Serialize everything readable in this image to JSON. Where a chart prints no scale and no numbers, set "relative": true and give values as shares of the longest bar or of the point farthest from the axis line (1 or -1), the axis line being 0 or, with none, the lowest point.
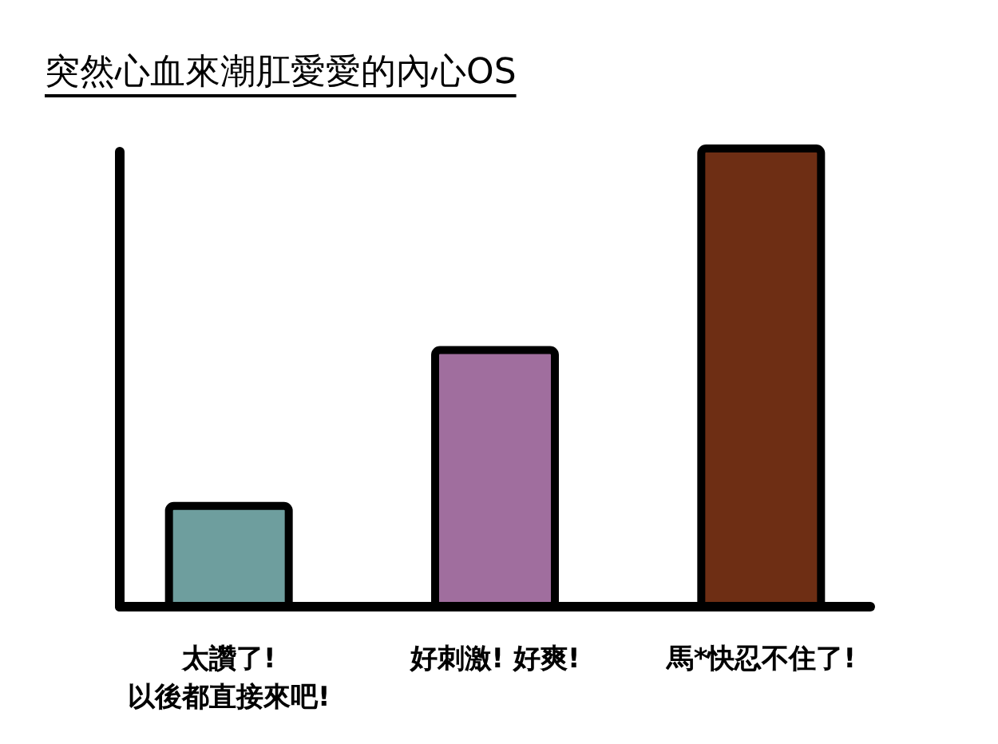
{
  "chart_data": {
    "type": "bar",
    "title": "突然心血來潮肛愛愛的內心OS",
    "relative": true,
    "categories": [
      "太讚了!\n以後都直接來吧!",
      "好刺激! 好爽!",
      "馬*快忍不住了!"
    ],
    "values": [
      0.22,
      0.56,
      1
    ],
    "colors": [
      "#6e9e9e",
      "#a06e9e",
      "#6e2e14"
    ]
  }
}
